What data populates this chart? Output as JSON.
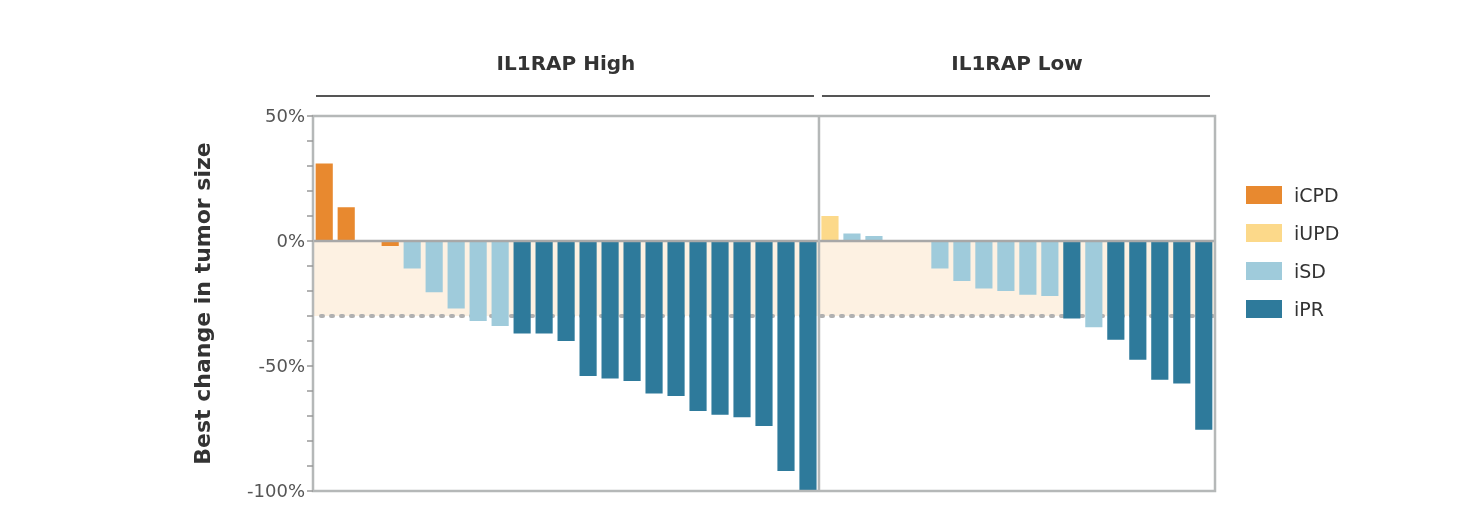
{
  "chart_data": {
    "type": "bar",
    "ylabel": "Best change in tumor size",
    "annotations": [
      "IL1RAP High",
      "IL1RAP Low"
    ],
    "categories": [
      null,
      null,
      null,
      null,
      null,
      null,
      null,
      null,
      null,
      null,
      null,
      null,
      null,
      null,
      null,
      null,
      null,
      null,
      null,
      null,
      null,
      null,
      null,
      null,
      null,
      null,
      null,
      null,
      null,
      null,
      null,
      null,
      null,
      null,
      null,
      null,
      null,
      null,
      null,
      null,
      null
    ],
    "series": [
      {
        "name": "iCPD",
        "color": "#e8892f",
        "values": [
          31,
          13.5,
          null,
          -2,
          null,
          null,
          null,
          null,
          null,
          null,
          null,
          null,
          null,
          null,
          null,
          null,
          null,
          null,
          null,
          null,
          null,
          null,
          null,
          null,
          null,
          null,
          null,
          null,
          null,
          null,
          null,
          null,
          null,
          null,
          null,
          null,
          null,
          null,
          null,
          null,
          null
        ]
      },
      {
        "name": "iUPD",
        "color": "#fcd98a",
        "values": [
          null,
          null,
          null,
          null,
          null,
          null,
          null,
          null,
          null,
          null,
          null,
          null,
          null,
          null,
          null,
          null,
          null,
          null,
          null,
          null,
          null,
          null,
          null,
          10,
          null,
          null,
          null,
          null,
          null,
          null,
          null,
          null,
          null,
          null,
          null,
          null,
          null,
          null,
          null,
          null,
          null
        ]
      },
      {
        "name": "iSD",
        "color": "#9fcbdb",
        "values": [
          null,
          null,
          null,
          null,
          -11,
          -20.5,
          -27,
          -32,
          -34,
          null,
          null,
          null,
          null,
          null,
          null,
          null,
          null,
          null,
          null,
          null,
          null,
          null,
          null,
          null,
          3,
          2,
          null,
          null,
          -11,
          -16,
          -19,
          -20,
          -21.5,
          -22,
          null,
          -34.5,
          null,
          null,
          null,
          null,
          null
        ]
      },
      {
        "name": "iPR",
        "color": "#2e7a9b",
        "values": [
          null,
          null,
          null,
          null,
          null,
          null,
          null,
          null,
          null,
          -37,
          -37,
          -40,
          -54,
          -55,
          -56,
          -61,
          -62,
          -68,
          -69.5,
          -70.5,
          -74,
          -92,
          -100,
          null,
          null,
          null,
          null,
          null,
          null,
          null,
          null,
          null,
          null,
          null,
          -31,
          null,
          -39.5,
          -47.5,
          -55.5,
          -57,
          -75.5
        ]
      }
    ],
    "ylim": [
      -100,
      50
    ],
    "yticks": [
      {
        "value": 50,
        "label": "50%"
      },
      {
        "value": 40,
        "label": null
      },
      {
        "value": 30,
        "label": null
      },
      {
        "value": 20,
        "label": null
      },
      {
        "value": 10,
        "label": null
      },
      {
        "value": 0,
        "label": "0%"
      },
      {
        "value": -10,
        "label": null
      },
      {
        "value": -20,
        "label": null
      },
      {
        "value": -30,
        "label": null
      },
      {
        "value": -40,
        "label": null
      },
      {
        "value": -50,
        "label": "-50%"
      },
      {
        "value": -60,
        "label": null
      },
      {
        "value": -70,
        "label": null
      },
      {
        "value": -80,
        "label": null
      },
      {
        "value": -90,
        "label": null
      },
      {
        "value": -100,
        "label": "-100%"
      }
    ],
    "tick_labels": "y",
    "legend": "right",
    "bands": [
      {
        "axis": "y",
        "from": -30,
        "to": 0,
        "color": "#fdf1e2"
      }
    ],
    "ref_lines": [
      {
        "axis": "y",
        "value": -30,
        "color": "#b0b0b0",
        "line_style": "dotted"
      }
    ]
  }
}
